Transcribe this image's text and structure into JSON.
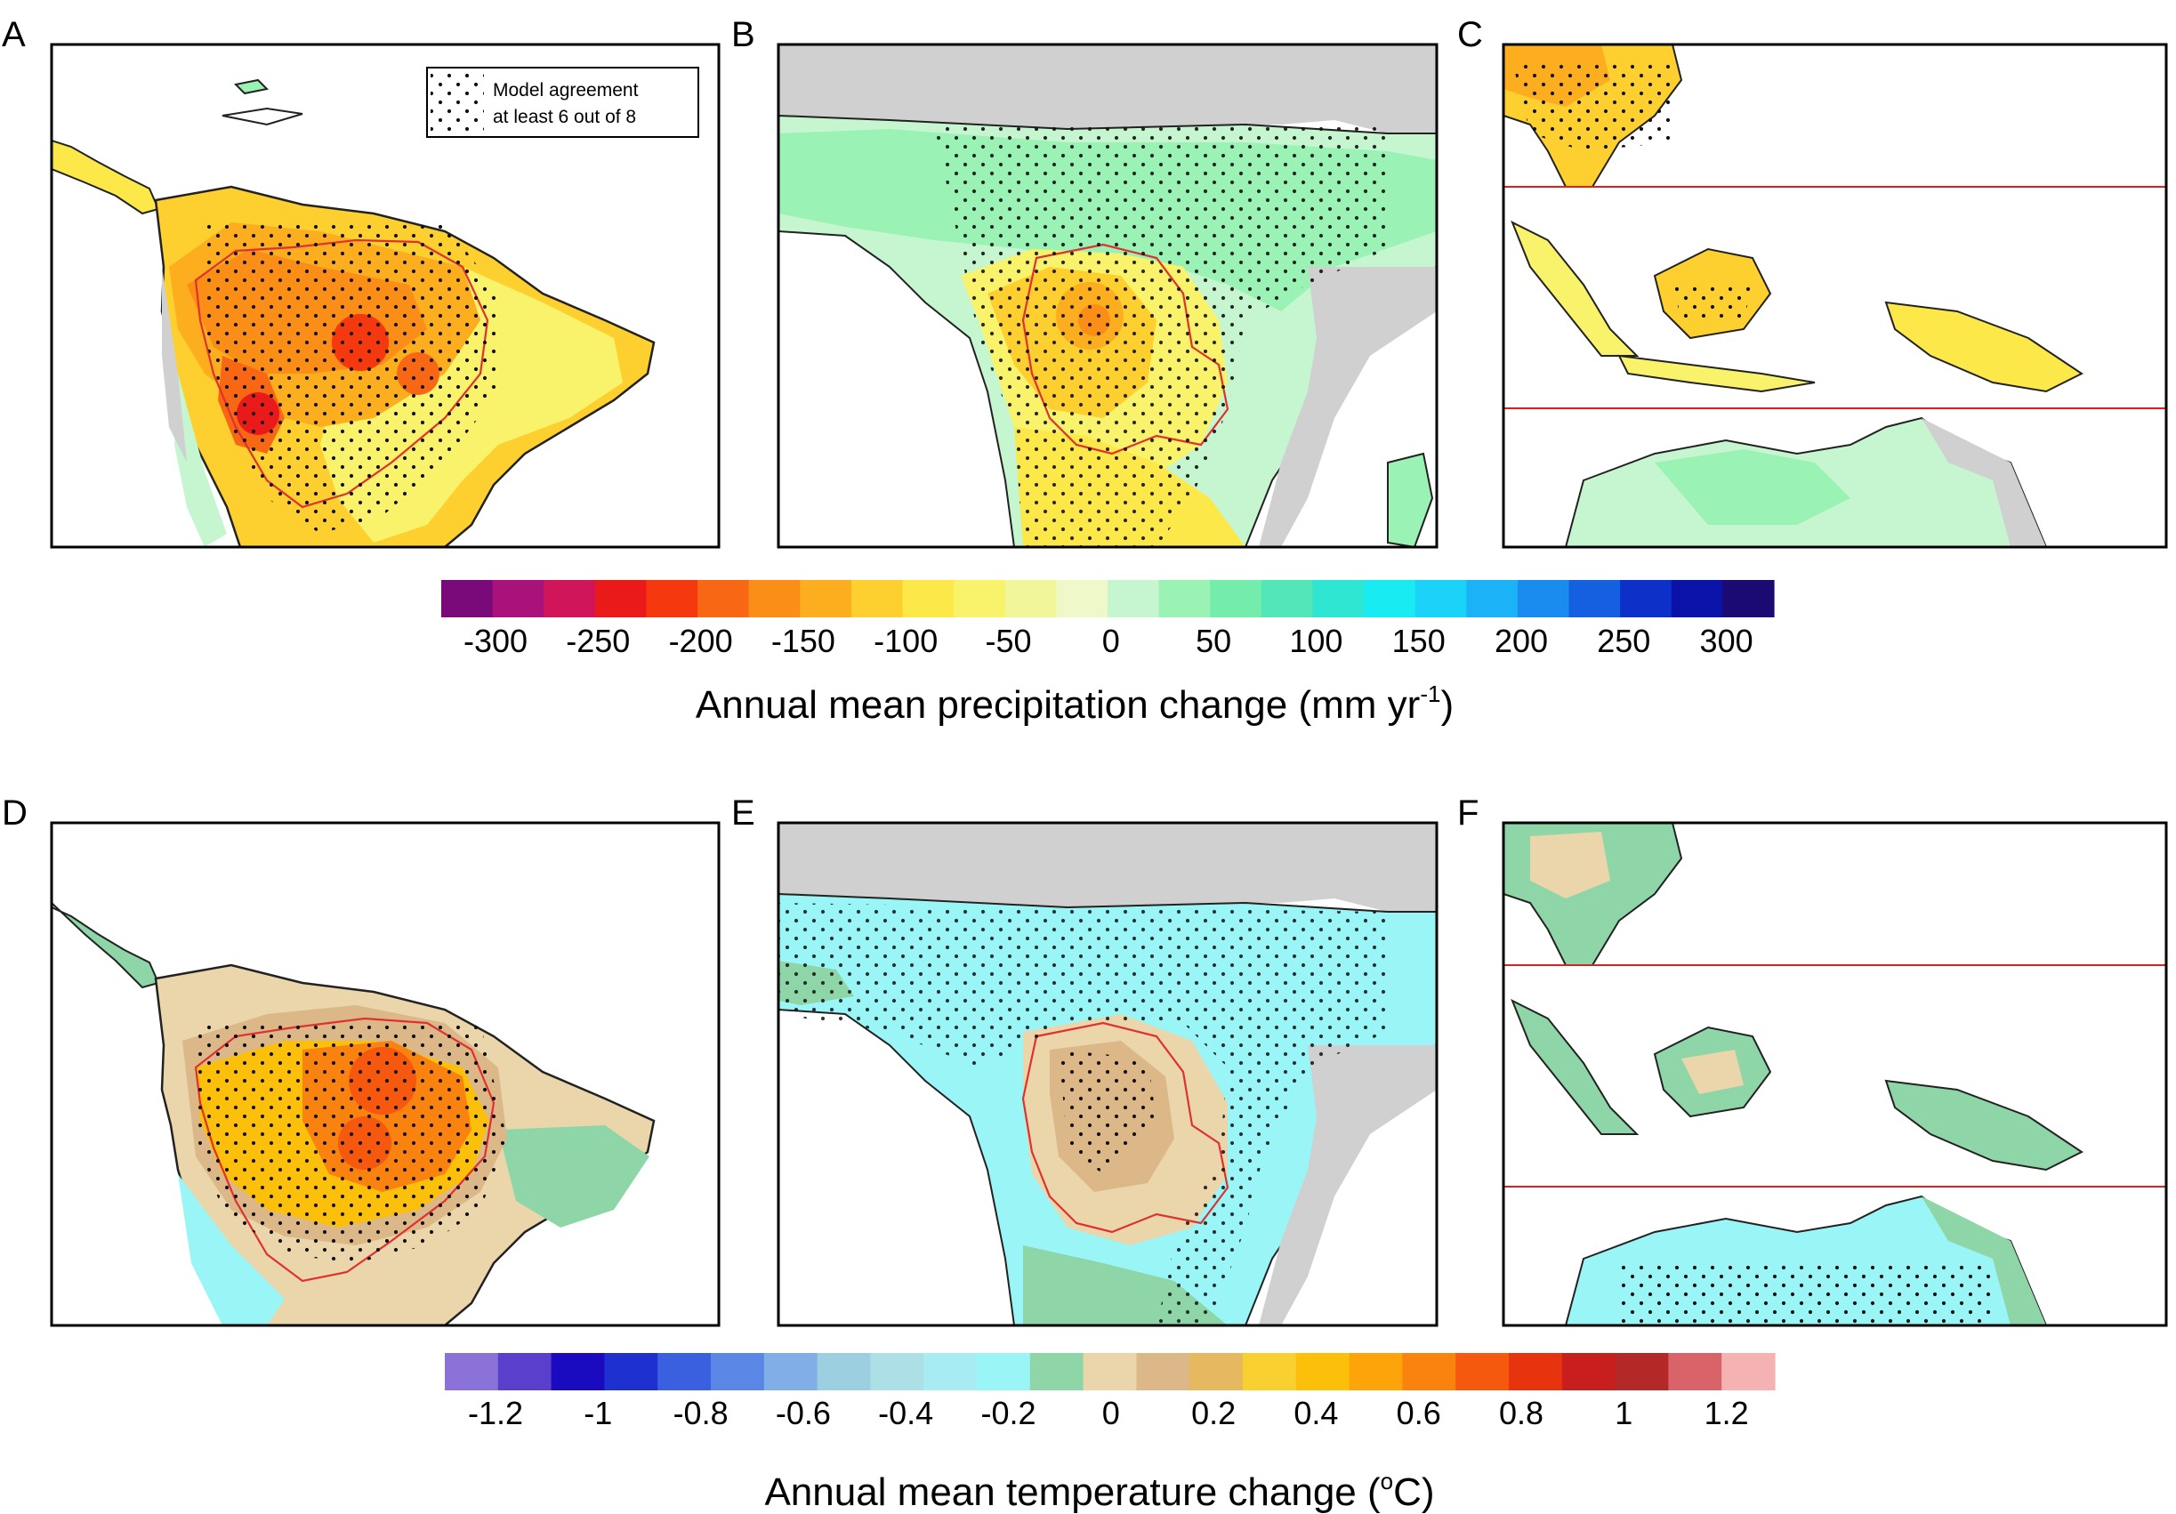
{
  "panels": [
    {
      "letter": "A",
      "region": "south-america",
      "variable": "precipitation"
    },
    {
      "letter": "B",
      "region": "africa",
      "variable": "precipitation"
    },
    {
      "letter": "C",
      "region": "southeast-asia",
      "variable": "precipitation"
    },
    {
      "letter": "D",
      "region": "south-america",
      "variable": "temperature"
    },
    {
      "letter": "E",
      "region": "africa",
      "variable": "temperature"
    },
    {
      "letter": "F",
      "region": "southeast-asia",
      "variable": "temperature"
    }
  ],
  "legend": {
    "line1": "Model agreement",
    "line2": "at least 6 out of 8"
  },
  "precip_colorbar": {
    "ticks": [
      "-300",
      "-250",
      "-200",
      "-150",
      "-100",
      "-50",
      "0",
      "50",
      "100",
      "150",
      "200",
      "250",
      "300"
    ],
    "title": "Annual mean precipitation change (mm yr",
    "title_sup": "-1",
    "title_end": ")",
    "colors": [
      "#7a0a7a",
      "#a8127a",
      "#d0155a",
      "#ea1a1a",
      "#f5380e",
      "#f86814",
      "#fa8e16",
      "#fcae1e",
      "#fdd030",
      "#fde84a",
      "#f8f36a",
      "#f2f69a",
      "#eef8c8",
      "#c6f6d0",
      "#9af2b4",
      "#74ecac",
      "#52e6b8",
      "#2ee6d2",
      "#18ecf2",
      "#1ad2f8",
      "#1cb2f8",
      "#1a8cf0",
      "#1460e0",
      "#0c30c8",
      "#0a12a8",
      "#1a0a72"
    ]
  },
  "temp_colorbar": {
    "ticks": [
      "-1.2",
      "-1",
      "-0.8",
      "-0.6",
      "-0.4",
      "-0.2",
      "0",
      "0.2",
      "0.4",
      "0.6",
      "0.8",
      "1",
      "1.2"
    ],
    "title": "Annual mean temperature change (",
    "title_sup": "o",
    "title_end": "C)",
    "colors": [
      "#8a72d8",
      "#5a3ecc",
      "#1a0ac0",
      "#1e30d0",
      "#3a60e0",
      "#5a86e6",
      "#82aee8",
      "#9ccfe0",
      "#ace0e6",
      "#a6ecf2",
      "#9af6f6",
      "#8ed6a8",
      "#ead6aa",
      "#dcb888",
      "#e6b860",
      "#f8d030",
      "#fcc00a",
      "#fca40a",
      "#fa820e",
      "#f6580e",
      "#e8340e",
      "#c81e1e",
      "#b42828",
      "#d8646a",
      "#f4b2b2"
    ]
  }
}
